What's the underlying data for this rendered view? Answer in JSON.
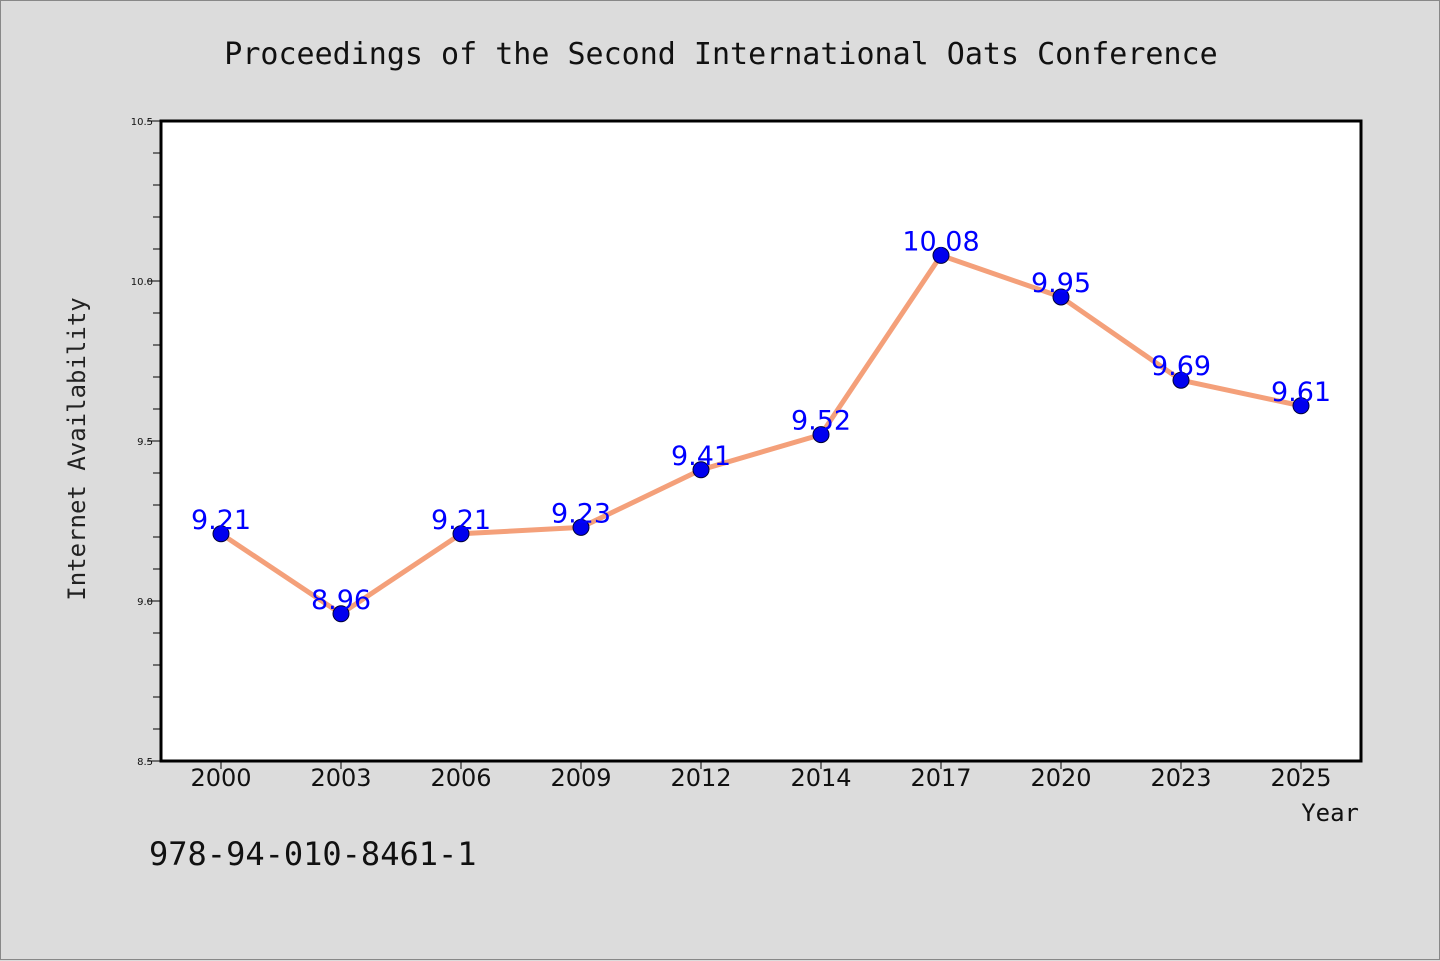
{
  "colors": {
    "background": "#dcdcdc",
    "plot_background": "#ffffff",
    "line": "#f4a07a",
    "marker": "#0000ee",
    "data_label": "#0000ff"
  },
  "isbn": "978-94-010-8461-1",
  "chart_data": {
    "type": "line",
    "title": "Proceedings of the Second International Oats Conference",
    "xlabel": "Year",
    "ylabel": "Internet Availability",
    "categories": [
      "2000",
      "2003",
      "2006",
      "2009",
      "2012",
      "2014",
      "2017",
      "2020",
      "2023",
      "2025"
    ],
    "series": [
      {
        "values": [
          9.21,
          8.96,
          9.21,
          9.23,
          9.41,
          9.52,
          10.08,
          9.95,
          9.69,
          9.61
        ],
        "data_labels": [
          "9.21",
          "8.96",
          "9.21",
          "9.23",
          "9.41",
          "9.52",
          "10.08",
          "9.95",
          "9.69",
          "9.61"
        ]
      }
    ],
    "ylim": [
      8.5,
      10.5
    ],
    "yticks": [
      "8.5",
      "9.0",
      "9.5",
      "10.0",
      "10.5"
    ],
    "ytick_values": [
      8.5,
      9.0,
      9.5,
      10.0,
      10.5
    ],
    "grid": false,
    "legend": "none",
    "markers": true,
    "data_labels_shown": true
  }
}
